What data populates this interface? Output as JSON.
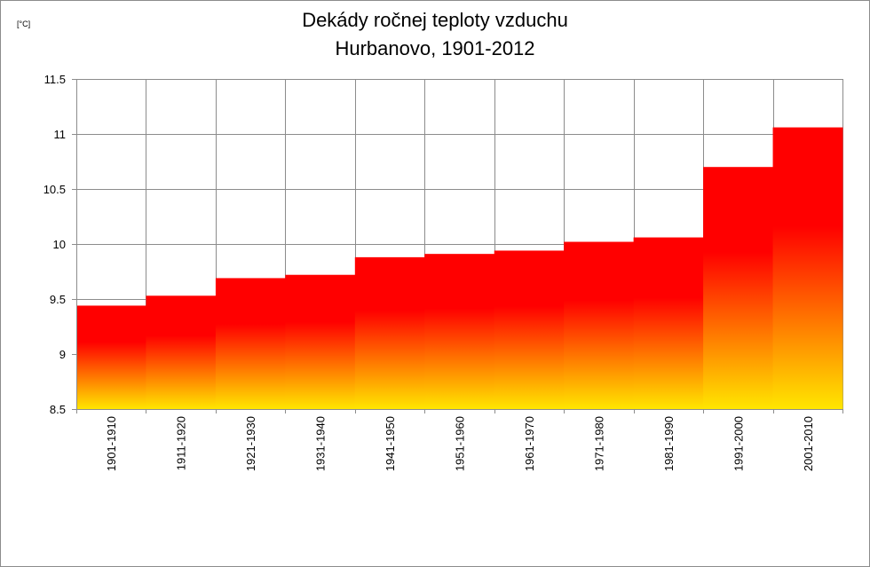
{
  "chart_data": {
    "type": "bar",
    "title_line1": "Dekády ročnej teploty vzduchu",
    "title_line2": "Hurbanovo, 1901-2012",
    "ylabel": "[°C]",
    "xlabel": "",
    "ylim": [
      8.5,
      11.5
    ],
    "yticks": [
      8.5,
      9,
      9.5,
      10,
      10.5,
      11,
      11.5
    ],
    "ytick_labels": [
      "8.5",
      "9",
      "9.5",
      "10",
      "10.5",
      "11",
      "11.5"
    ],
    "grid": true,
    "legend": false,
    "gradient_colors": [
      "#ff0000",
      "#ffe600"
    ],
    "categories": [
      "1901-1910",
      "1911-1920",
      "1921-1930",
      "1931-1940",
      "1941-1950",
      "1951-1960",
      "1961-1970",
      "1971-1980",
      "1981-1990",
      "1991-2000",
      "2001-2010"
    ],
    "values": [
      9.44,
      9.53,
      9.69,
      9.72,
      9.88,
      9.91,
      9.94,
      10.02,
      10.06,
      10.7,
      11.06
    ]
  }
}
